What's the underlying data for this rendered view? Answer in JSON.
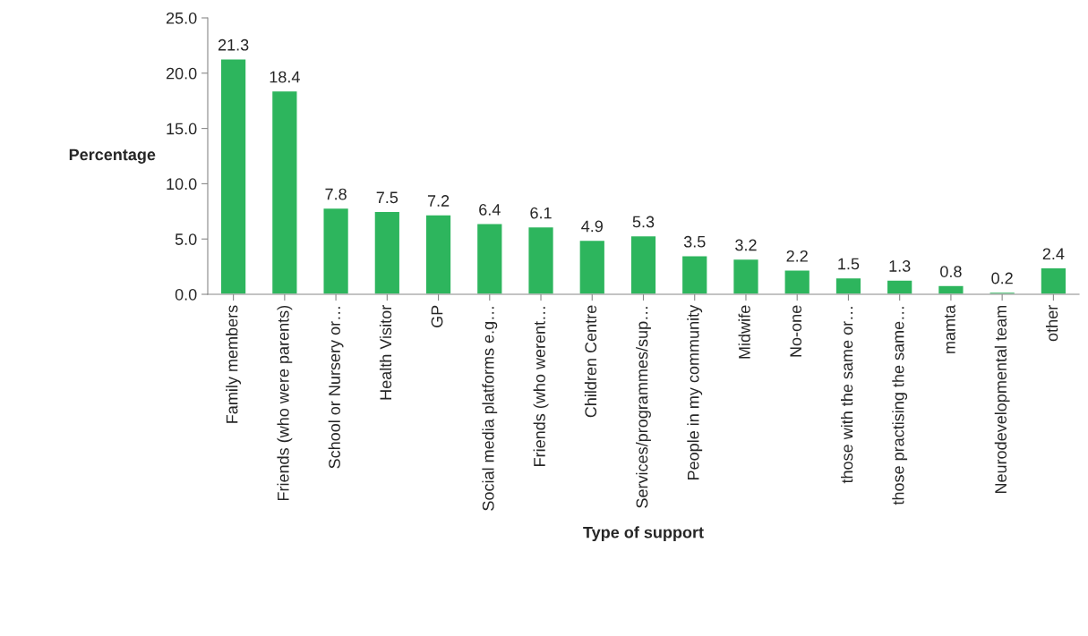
{
  "chart_data": {
    "type": "bar",
    "xlabel": "Type of support",
    "ylabel": "Percentage",
    "categories": [
      "Family members",
      "Friends (who were parents)",
      "School or Nursery or…",
      "Health Visitor",
      "GP",
      "Social media platforms e.g…",
      "Friends (who werent…",
      "Children Centre",
      "Services/programmes/sup…",
      "People in my community",
      "Midwife",
      "No-one",
      "those with the same or…",
      "those practising the same…",
      "mamta",
      "Neurodevelopmental team",
      "other"
    ],
    "values": [
      21.3,
      18.4,
      7.8,
      7.5,
      7.2,
      6.4,
      6.1,
      4.9,
      5.3,
      3.5,
      3.2,
      2.2,
      1.5,
      1.3,
      0.8,
      0.2,
      2.4
    ],
    "color": "#2db55d",
    "ylim": [
      0,
      25
    ],
    "yticks": [
      {
        "value": 0,
        "label": "0.0"
      },
      {
        "value": 5,
        "label": "5.0"
      },
      {
        "value": 10,
        "label": "10.0"
      },
      {
        "value": 15,
        "label": "15.0"
      },
      {
        "value": 20,
        "label": "20.0"
      },
      {
        "value": 25,
        "label": "25.0"
      }
    ],
    "data_labels": true,
    "grid": false,
    "legend": false
  }
}
